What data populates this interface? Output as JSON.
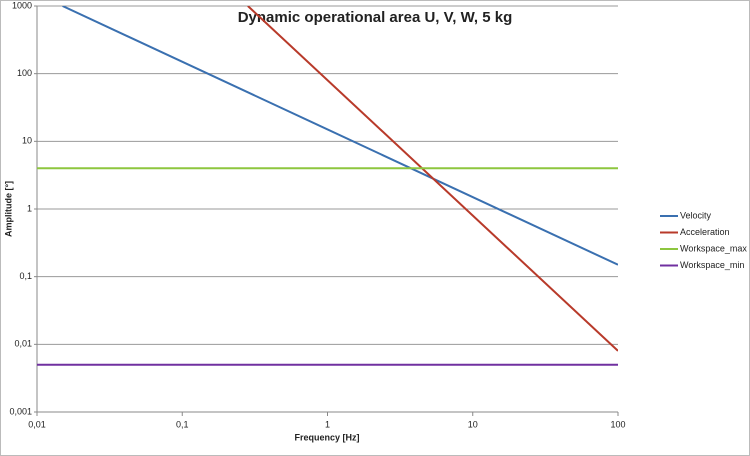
{
  "chart_data": {
    "type": "line",
    "title": "Dynamic operational area U, V, W, 5 kg",
    "x_label": "Frequency [Hz]",
    "y_label": "Amplitude [°]",
    "log_x": true,
    "log_y": true,
    "grid": true,
    "legend": "right",
    "xlim": [
      0.01,
      100
    ],
    "xticks": [
      {
        "value": 0.01,
        "label": "0,01"
      },
      {
        "value": 0.1,
        "label": "0,1"
      },
      1,
      10,
      100
    ],
    "ylim": [
      0.001,
      1000
    ],
    "yticks": [
      {
        "value": 0.001,
        "label": "0,001"
      },
      {
        "value": 0.01,
        "label": "0,01"
      },
      {
        "value": 0.1,
        "label": "0,1"
      },
      1,
      10,
      100,
      1000
    ],
    "area_color": "#cfdeec",
    "series": [
      {
        "name": "Velocity",
        "color": "#3a70b0",
        "x": [
          0.015,
          100
        ],
        "values": [
          1000,
          0.15
        ]
      },
      {
        "name": "Acceleration",
        "color": "#b83a2a",
        "x": [
          0.283,
          100
        ],
        "values": [
          1000,
          0.008
        ]
      },
      {
        "name": "Workspace_max",
        "color": "#8dc63f",
        "x": [
          0.01,
          100
        ],
        "values": [
          4,
          4
        ]
      },
      {
        "name": "Workspace_min",
        "color": "#7030a0",
        "x": [
          0.01,
          100
        ],
        "values": [
          0.005,
          0.005
        ]
      }
    ]
  }
}
